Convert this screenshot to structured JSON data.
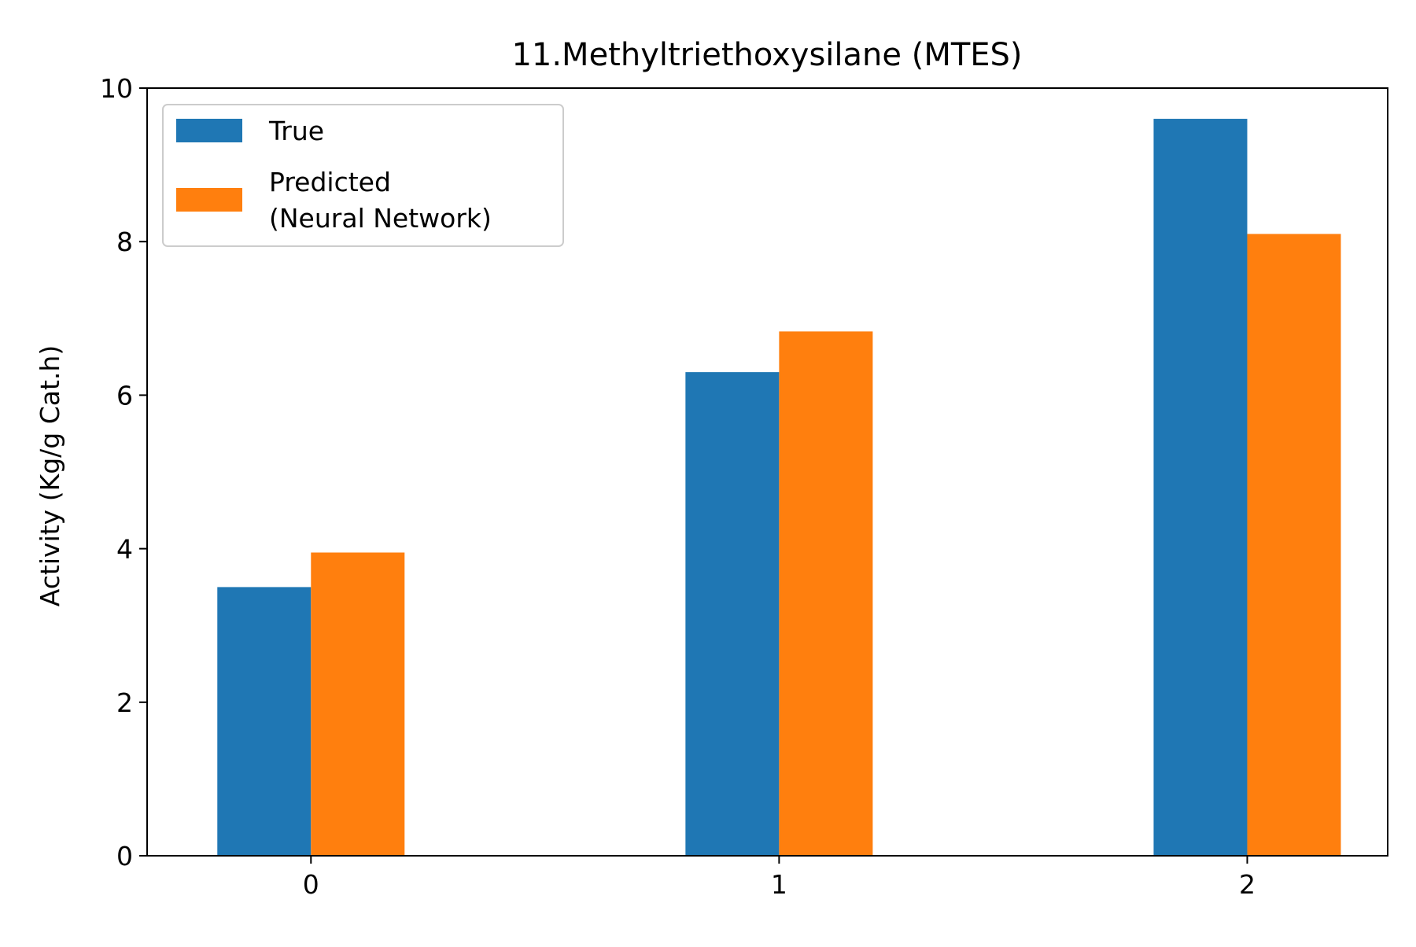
{
  "chart_data": {
    "type": "bar",
    "title": "11.Methyltriethoxysilane (MTES)",
    "xlabel": "",
    "ylabel": "Activity (Kg/g Cat.h)",
    "categories": [
      "0",
      "1",
      "2"
    ],
    "series": [
      {
        "name": "True",
        "values": [
          3.5,
          6.3,
          9.6
        ],
        "color": "#1f77b4"
      },
      {
        "name": "Predicted\n(Neural Network)",
        "values": [
          3.95,
          6.83,
          8.1
        ],
        "color": "#ff7f0e"
      }
    ],
    "ylim": [
      0,
      10
    ],
    "xlim": [
      -0.35,
      2.3
    ],
    "yticks": [
      0,
      2,
      4,
      6,
      8,
      10
    ],
    "grid": false,
    "legend_position": "upper-left"
  }
}
